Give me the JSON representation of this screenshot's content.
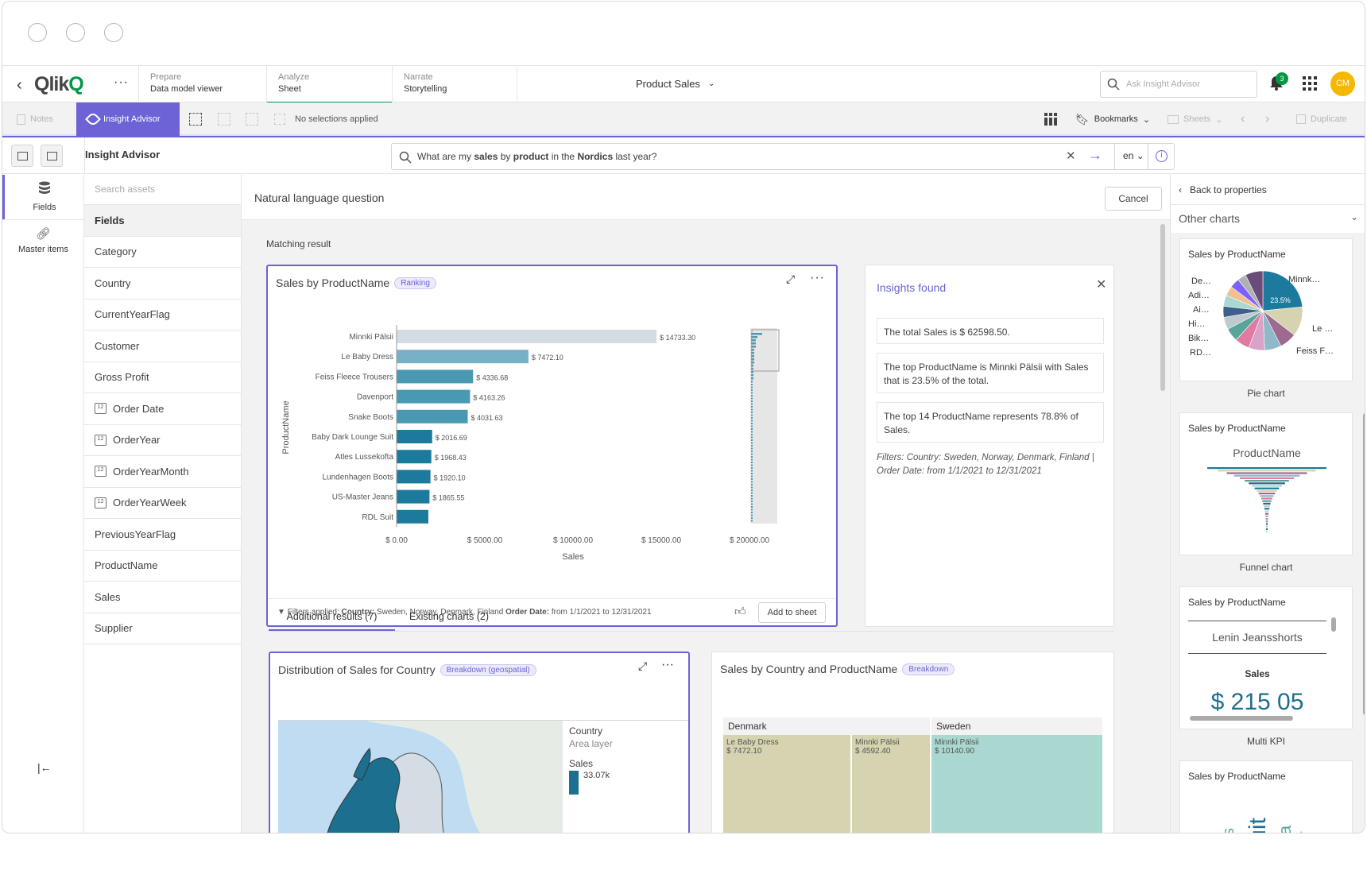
{
  "nav": {
    "prepare": {
      "small": "Prepare",
      "large": "Data model viewer"
    },
    "analyze": {
      "small": "Analyze",
      "large": "Sheet"
    },
    "narrate": {
      "small": "Narrate",
      "large": "Storytelling"
    },
    "app_title": "Product Sales",
    "ask_placeholder": "Ask Insight Advisor",
    "notification_count": "3",
    "avatar": "CM"
  },
  "toolbar": {
    "notes": "Notes",
    "insight_advisor": "Insight Advisor",
    "no_selections": "No selections applied",
    "bookmarks": "Bookmarks",
    "sheets": "Sheets",
    "duplicate": "Duplicate"
  },
  "iabar": {
    "title": "Insight Advisor",
    "query_parts": [
      "What are my ",
      "sales",
      " by ",
      "product",
      " in the ",
      "Nordics",
      " last year?"
    ],
    "lang": "en"
  },
  "rail": {
    "fields": "Fields",
    "master_items": "Master items"
  },
  "fieldlist": {
    "search_placeholder": "Search assets",
    "header": "Fields",
    "items": [
      {
        "label": "Category",
        "date": false
      },
      {
        "label": "Country",
        "date": false
      },
      {
        "label": "CurrentYearFlag",
        "date": false
      },
      {
        "label": "Customer",
        "date": false
      },
      {
        "label": "Gross Profit",
        "date": false
      },
      {
        "label": "Order Date",
        "date": true
      },
      {
        "label": "OrderYear",
        "date": true
      },
      {
        "label": "OrderYearMonth",
        "date": true
      },
      {
        "label": "OrderYearWeek",
        "date": true
      },
      {
        "label": "PreviousYearFlag",
        "date": false
      },
      {
        "label": "ProductName",
        "date": false
      },
      {
        "label": "Sales",
        "date": false
      },
      {
        "label": "Supplier",
        "date": false
      }
    ]
  },
  "main": {
    "header": "Natural language question",
    "cancel": "Cancel",
    "matching": "Matching result",
    "chart_title": "Sales by ProductName",
    "chart_chip": "Ranking",
    "filters_label": "Filters applied:",
    "filters_country_key": "Country:",
    "filters_country": "Sweden, Norway, Denmark, Finland",
    "filters_date_key": "Order Date:",
    "filters_date": "from 1/1/2021 to 12/31/2021",
    "add_to_sheet": "Add to sheet",
    "insights_title": "Insights found",
    "insights": [
      "The total Sales is $ 62598.50.",
      "The top ProductName is Minnki Pälsii with Sales that is 23.5% of the total.",
      "The top 14 ProductName represents 78.8% of Sales."
    ],
    "insights_filters": "Filters: Country: Sweden, Norway, Denmark, Finland | Order Date: from 1/1/2021 to 12/31/2021",
    "tab_additional": "Additional results (7)",
    "tab_existing": "Existing charts (2)",
    "dist_title": "Distribution of Sales for Country",
    "dist_chip": "Breakdown (geospatial)",
    "legend_country": "Country",
    "legend_area": "Area layer",
    "legend_sales": "Sales",
    "legend_value": "33.07k",
    "breakdown_title": "Sales by Country and ProductName",
    "breakdown_chip": "Breakdown",
    "treemap": {
      "denmark": "Denmark",
      "sweden": "Sweden",
      "cells": [
        {
          "name": "Le Baby Dress",
          "value": "$ 7472.10"
        },
        {
          "name": "Minnki Pälsii",
          "value": "$ 4592.40"
        },
        {
          "name": "Minnki Pälsii",
          "value": "$ 10140.90"
        }
      ]
    }
  },
  "chart_data": {
    "type": "bar",
    "title": "Sales by ProductName",
    "xlabel": "Sales",
    "ylabel": "ProductName",
    "xlim": [
      0,
      20000
    ],
    "xticks": [
      "$ 0.00",
      "$ 5000.00",
      "$ 10000.00",
      "$ 15000.00",
      "$ 20000.00"
    ],
    "categories": [
      "Minnki Pälsii",
      "Le Baby Dress",
      "Feiss Fleece Trousers",
      "Davenport",
      "Snake Boots",
      "Baby Dark Lounge Suit",
      "Atles Lussekofta",
      "Lundenhagen Boots",
      "US-Master Jeans",
      "RDL Suit"
    ],
    "values": [
      14733.3,
      7472.1,
      4336.68,
      4163.26,
      4031.63,
      2016.69,
      1968.43,
      1920.1,
      1865.55,
      1800
    ],
    "labels": [
      "$ 14733.30",
      "$ 7472.10",
      "$ 4336.68",
      "$ 4163.26",
      "$ 4031.63",
      "$ 2016.69",
      "$ 1968.43",
      "$ 1920.10",
      "$ 1865.55",
      ""
    ]
  },
  "right": {
    "back": "Back to properties",
    "other": "Other charts",
    "cards": [
      {
        "title": "Sales by ProductName",
        "label": "Pie chart"
      },
      {
        "title": "Sales by ProductName",
        "label": "Funnel chart"
      },
      {
        "title": "Sales by ProductName",
        "label": "Multi KPI"
      },
      {
        "title": "Sales by ProductName",
        "label": ""
      }
    ],
    "pie_labels": [
      "De…",
      "Adi…",
      "Ai…",
      "Hi…",
      "Bik…",
      "RD…",
      "Minnk…",
      "Le …",
      "Feiss F…"
    ],
    "pie_pct": "23.5%",
    "funnel_title": "ProductName",
    "kpi_name": "Lenin Jeansshorts",
    "kpi_measure": "Sales",
    "kpi_value": "$ 215 05",
    "wordcloud": [
      "ots",
      "Suit",
      "Ca",
      "Tr"
    ]
  }
}
